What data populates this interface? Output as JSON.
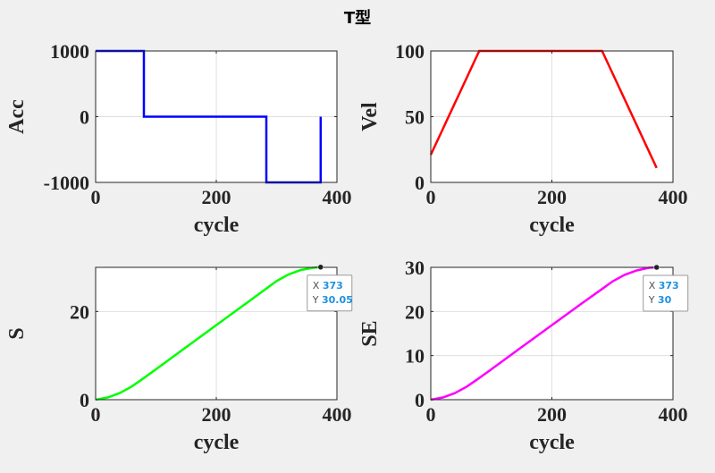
{
  "figure": {
    "title": "T型"
  },
  "chart_data": [
    {
      "type": "line",
      "ylabel": "Acc",
      "xlabel": "cycle",
      "xlim": [
        0,
        400
      ],
      "ylim": [
        -1000,
        1000
      ],
      "xticks": [
        0,
        200,
        400
      ],
      "yticks": [
        -1000,
        0,
        1000
      ],
      "grid": true,
      "series": [
        {
          "color": "#0000ff",
          "points": [
            [
              0,
              1000
            ],
            [
              80,
              1000
            ],
            [
              80,
              0
            ],
            [
              283,
              0
            ],
            [
              283,
              -1000
            ],
            [
              373,
              -1000
            ],
            [
              373,
              0
            ]
          ]
        }
      ]
    },
    {
      "type": "line",
      "ylabel": "Vel",
      "xlabel": "cycle",
      "xlim": [
        0,
        400
      ],
      "ylim": [
        0,
        100
      ],
      "xticks": [
        0,
        200,
        400
      ],
      "yticks": [
        0,
        50,
        100
      ],
      "grid": true,
      "series": [
        {
          "color": "#ff0000",
          "points": [
            [
              0,
              21
            ],
            [
              80,
              100
            ],
            [
              283,
              100
            ],
            [
              373,
              11
            ]
          ]
        }
      ]
    },
    {
      "type": "line",
      "ylabel": "S",
      "xlabel": "cycle",
      "xlim": [
        0,
        400
      ],
      "ylim": [
        0,
        30
      ],
      "xticks": [
        0,
        200,
        400
      ],
      "yticks": [
        0,
        20
      ],
      "grid": true,
      "series": [
        {
          "color": "#00ff00",
          "points": [
            [
              0,
              0
            ],
            [
              20,
              0.5
            ],
            [
              40,
              1.5
            ],
            [
              60,
              3.0
            ],
            [
              80,
              4.9
            ],
            [
              100,
              6.9
            ],
            [
              150,
              11.9
            ],
            [
              200,
              16.9
            ],
            [
              250,
              21.9
            ],
            [
              283,
              25.2
            ],
            [
              300,
              26.9
            ],
            [
              320,
              28.4
            ],
            [
              340,
              29.4
            ],
            [
              360,
              29.9
            ],
            [
              373,
              30.05
            ]
          ]
        }
      ],
      "datatip": {
        "x_label": "X",
        "x_value": "373",
        "y_label": "Y",
        "y_value": "30.05",
        "x": 373,
        "y": 30.05
      }
    },
    {
      "type": "line",
      "ylabel": "SE",
      "xlabel": "cycle",
      "xlim": [
        0,
        400
      ],
      "ylim": [
        0,
        30
      ],
      "xticks": [
        0,
        200,
        400
      ],
      "yticks": [
        0,
        10,
        20,
        30
      ],
      "grid": true,
      "series": [
        {
          "color": "#ff00ff",
          "points": [
            [
              0,
              0
            ],
            [
              20,
              0.5
            ],
            [
              40,
              1.5
            ],
            [
              60,
              3.0
            ],
            [
              80,
              4.9
            ],
            [
              100,
              6.9
            ],
            [
              150,
              11.9
            ],
            [
              200,
              16.9
            ],
            [
              250,
              21.9
            ],
            [
              283,
              25.1
            ],
            [
              300,
              26.8
            ],
            [
              320,
              28.3
            ],
            [
              340,
              29.3
            ],
            [
              360,
              29.9
            ],
            [
              373,
              30
            ]
          ]
        }
      ],
      "datatip": {
        "x_label": "X",
        "x_value": "373",
        "y_label": "Y",
        "y_value": "30",
        "x": 373,
        "y": 30
      }
    }
  ]
}
